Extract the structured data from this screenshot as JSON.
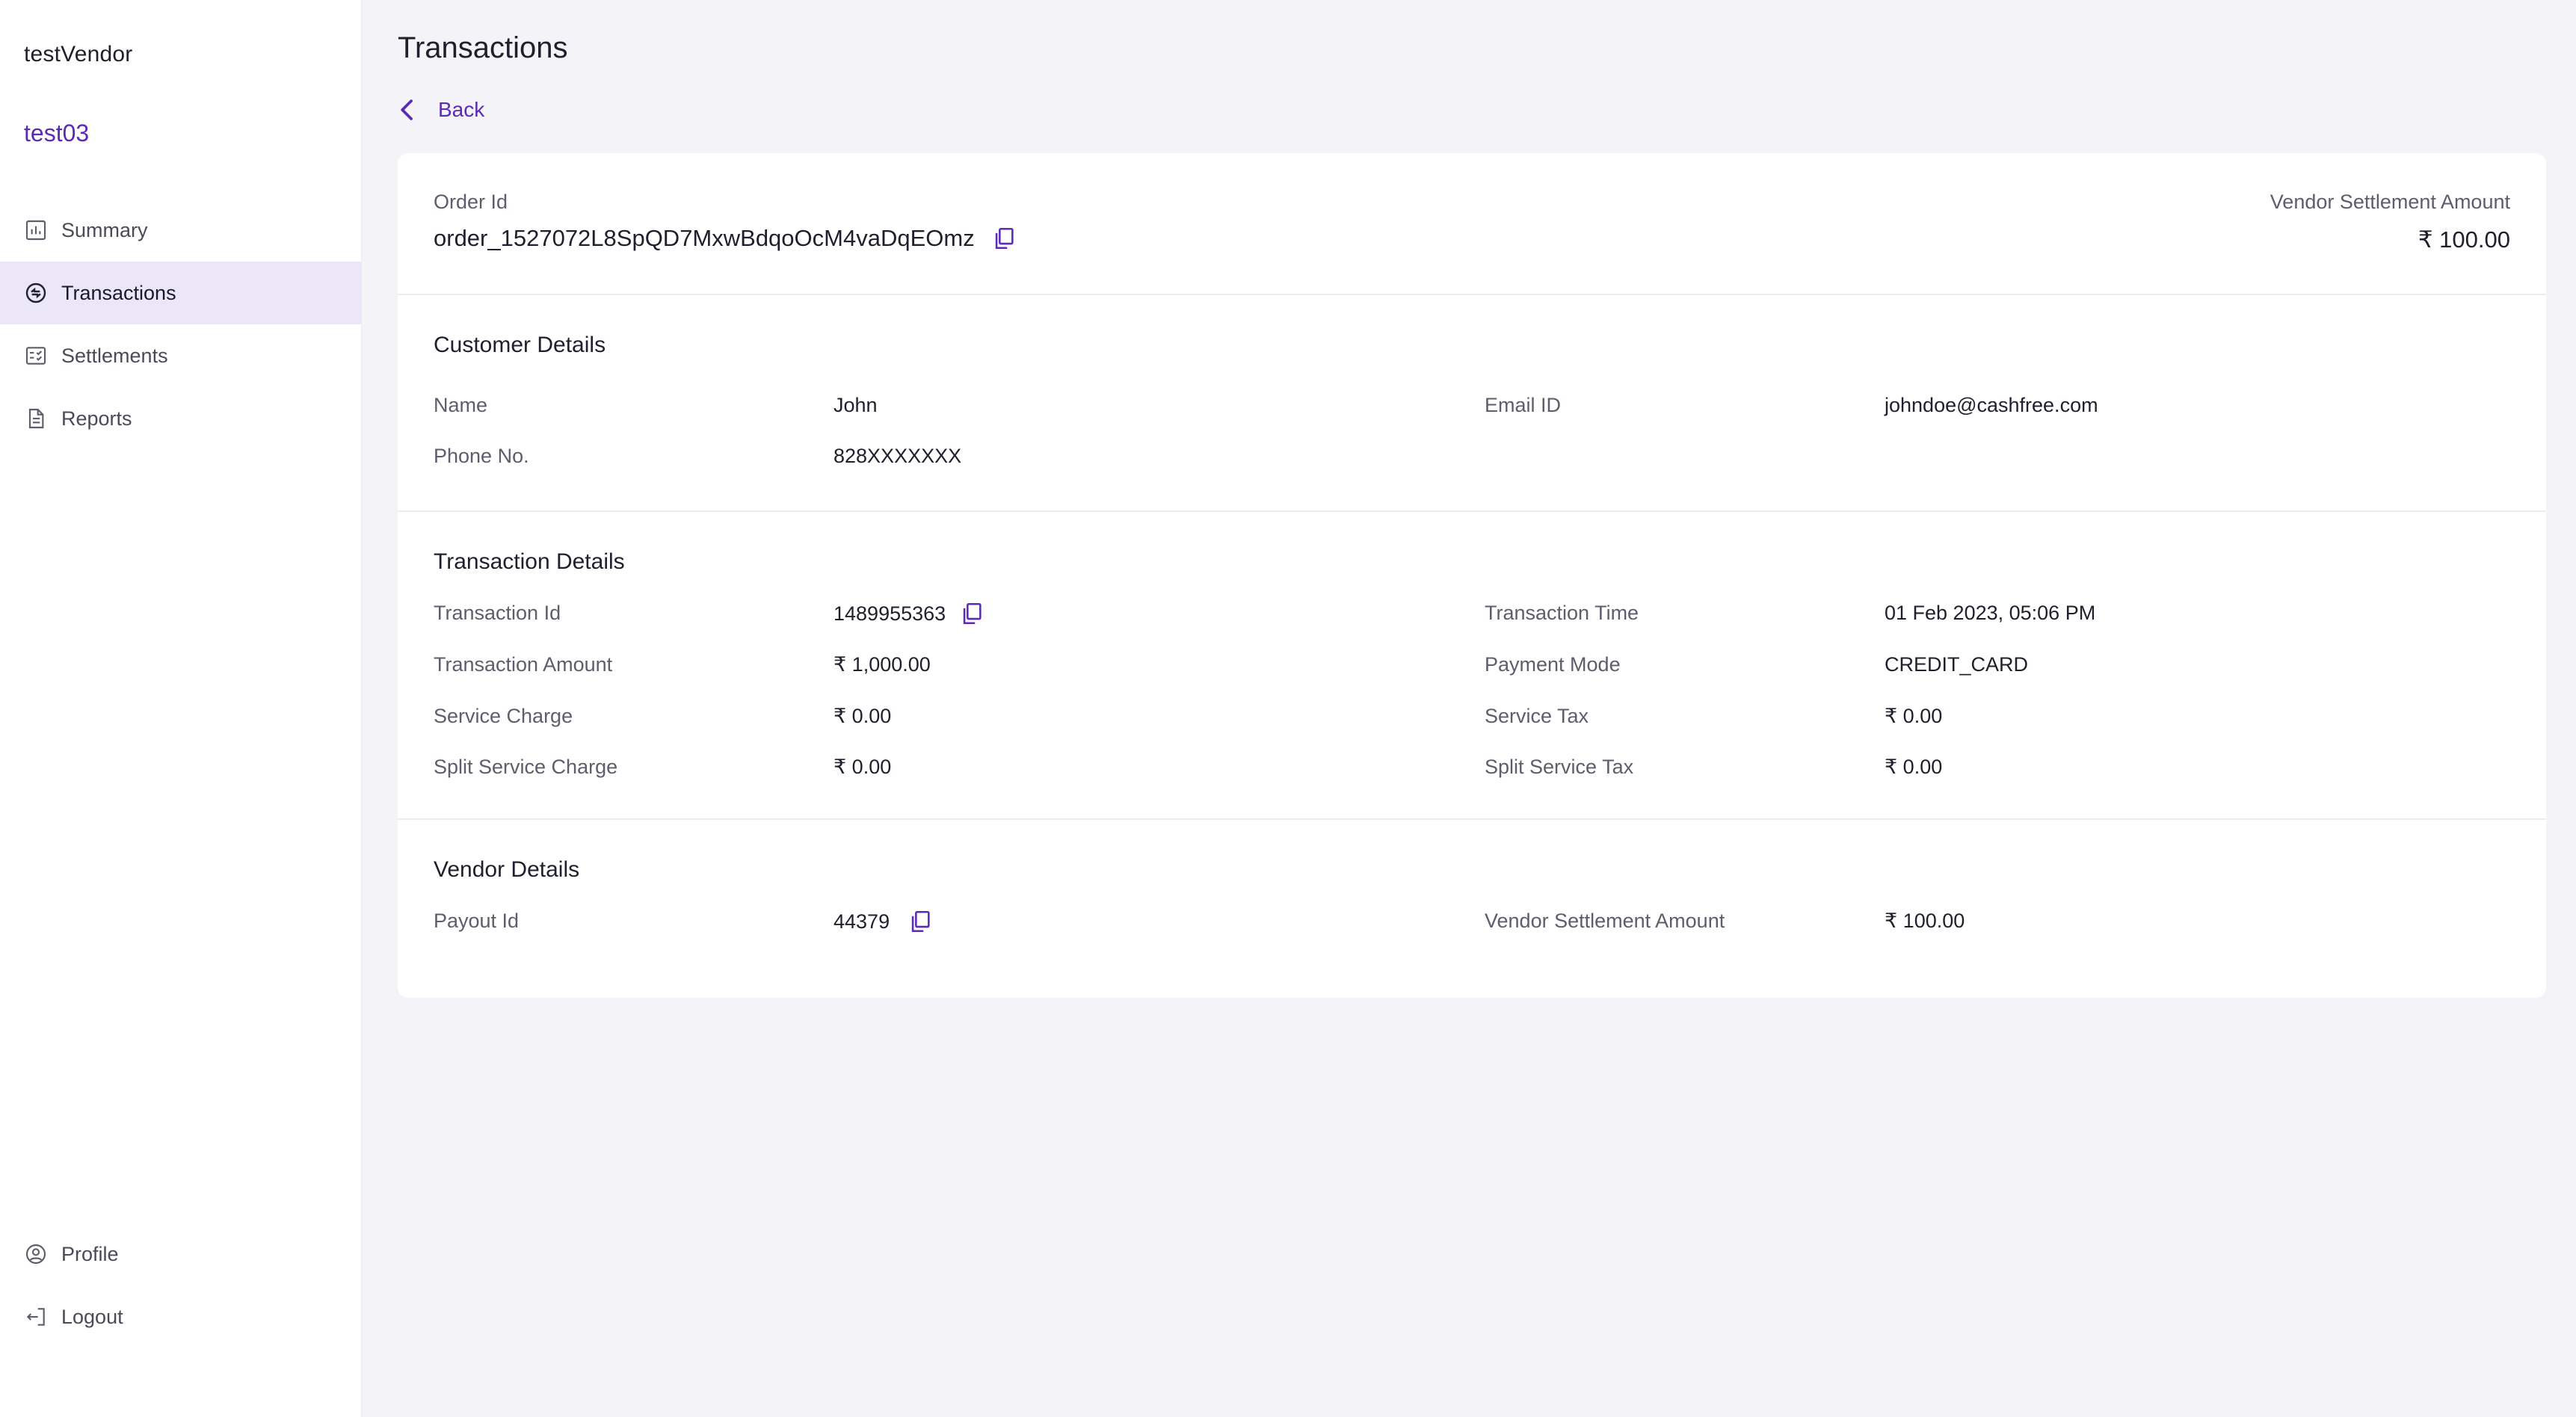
{
  "sidebar": {
    "vendor_name": "testVendor",
    "account_name": "test03",
    "nav": [
      {
        "label": "Summary",
        "icon": "chart-icon"
      },
      {
        "label": "Transactions",
        "icon": "transactions-icon",
        "active": true
      },
      {
        "label": "Settlements",
        "icon": "settlements-icon"
      },
      {
        "label": "Reports",
        "icon": "document-icon"
      }
    ],
    "bottom_nav": [
      {
        "label": "Profile",
        "icon": "user-icon"
      },
      {
        "label": "Logout",
        "icon": "logout-icon"
      }
    ]
  },
  "page": {
    "title": "Transactions",
    "back_label": "Back"
  },
  "order": {
    "id_label": "Order Id",
    "id_value": "order_1527072L8SpQD7MxwBdqoOcM4vaDqEOmz",
    "settlement_label": "Vendor Settlement Amount",
    "settlement_value": "₹ 100.00"
  },
  "customer": {
    "title": "Customer Details",
    "name_label": "Name",
    "name_value": "John",
    "email_label": "Email ID",
    "email_value": "johndoe@cashfree.com",
    "phone_label": "Phone No.",
    "phone_value": "828XXXXXXX"
  },
  "transaction": {
    "title": "Transaction Details",
    "id_label": "Transaction Id",
    "id_value": "1489955363",
    "time_label": "Transaction Time",
    "time_value": "01 Feb 2023, 05:06 PM",
    "amount_label": "Transaction Amount",
    "amount_value": "₹ 1,000.00",
    "mode_label": "Payment Mode",
    "mode_value": "CREDIT_CARD",
    "service_charge_label": "Service Charge",
    "service_charge_value": "₹ 0.00",
    "service_tax_label": "Service Tax",
    "service_tax_value": "₹ 0.00",
    "split_service_charge_label": "Split Service Charge",
    "split_service_charge_value": "₹ 0.00",
    "split_service_tax_label": "Split Service Tax",
    "split_service_tax_value": "₹ 0.00"
  },
  "vendor": {
    "title": "Vendor Details",
    "payout_label": "Payout Id",
    "payout_value": "44379",
    "settlement_label": "Vendor Settlement Amount",
    "settlement_value": "₹ 100.00"
  },
  "colors": {
    "accent": "#5b2bb5",
    "active_nav_bg": "#ece6f9",
    "page_bg": "#f4f4f8"
  }
}
